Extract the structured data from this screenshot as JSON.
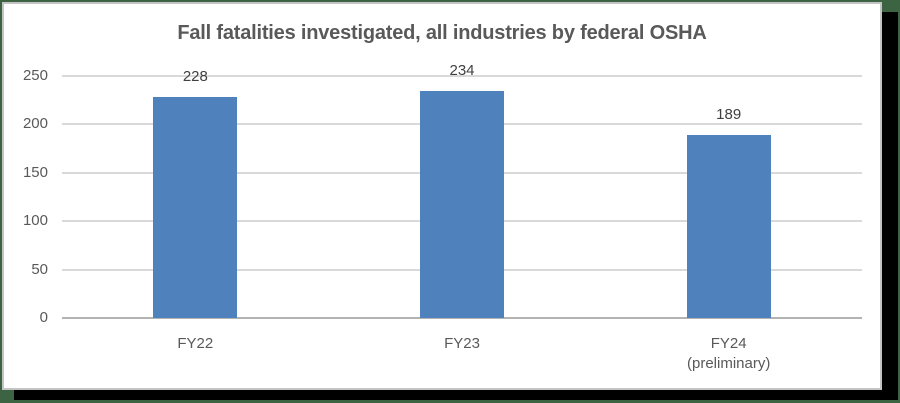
{
  "page": {
    "background_color": "#3c6442",
    "shadow_color": "#000000",
    "card_background": "#ffffff",
    "card_border_color": "#c4c4c4"
  },
  "chart": {
    "title_color": "#595959",
    "axis_label_color": "#595959",
    "data_label_color": "#404040",
    "gridline_color": "#d9d9d9",
    "axis_line_color": "#b3b3b3",
    "bar_color": "#4f81bd"
  },
  "chart_data": {
    "type": "bar",
    "title": "Fall fatalities investigated, all industries by federal OSHA",
    "categories": [
      "FY22",
      "FY23",
      "FY24\n(preliminary)"
    ],
    "values": [
      228,
      234,
      189
    ],
    "data_labels": [
      "228",
      "234",
      "189"
    ],
    "xlabel": "",
    "ylabel": "",
    "ylim": [
      0,
      250
    ],
    "yticks": [
      0,
      50,
      100,
      150,
      200,
      250
    ],
    "grid": true,
    "legend": false
  }
}
